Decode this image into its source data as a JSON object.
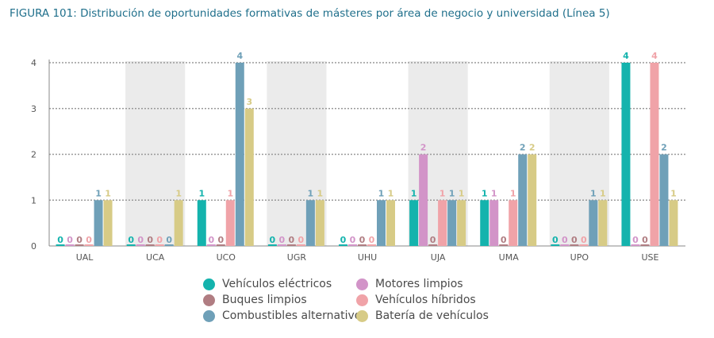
{
  "title": {
    "prefix": "FIGURA 101:",
    "text": "Distribución de oportunidades formativas de másteres por área de negocio y universidad (Línea 5)"
  },
  "chart_data": {
    "type": "bar",
    "categories": [
      "UAL",
      "UCA",
      "UCO",
      "UGR",
      "UHU",
      "UJA",
      "UMA",
      "UPO",
      "USE"
    ],
    "shaded_categories": [
      "UCA",
      "UGR",
      "UJA",
      "UPO"
    ],
    "ylim": [
      0,
      4
    ],
    "yticks": [
      0,
      1,
      2,
      3,
      4
    ],
    "grid": true,
    "legend_position": "bottom",
    "series": [
      {
        "name": "Vehículos eléctricos",
        "color": "#14b3ad",
        "values": [
          0,
          0,
          1,
          0,
          0,
          1,
          1,
          0,
          4
        ]
      },
      {
        "name": "Motores limpios",
        "color": "#d294c8",
        "values": [
          0,
          0,
          0,
          0,
          0,
          2,
          1,
          0,
          0
        ]
      },
      {
        "name": "Buques limpios",
        "color": "#b07d82",
        "values": [
          0,
          0,
          0,
          0,
          0,
          0,
          0,
          0,
          0
        ]
      },
      {
        "name": "Vehículos híbridos",
        "color": "#f0a3a8",
        "values": [
          0,
          0,
          1,
          0,
          0,
          1,
          1,
          0,
          4
        ]
      },
      {
        "name": "Combustibles alternativos",
        "color": "#6fa0b8",
        "values": [
          1,
          0,
          4,
          1,
          1,
          1,
          2,
          1,
          2
        ]
      },
      {
        "name": "Batería de vehículos",
        "color": "#d7cb86",
        "values": [
          1,
          1,
          3,
          1,
          1,
          1,
          2,
          1,
          1
        ]
      }
    ]
  }
}
